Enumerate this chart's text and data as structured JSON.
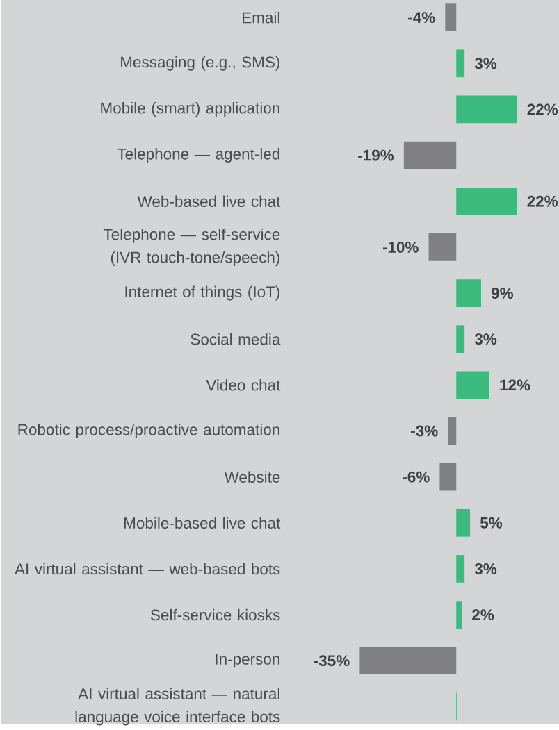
{
  "chart_data": {
    "type": "bar",
    "orientation": "horizontal",
    "tick_labels": "y",
    "categories": [
      "Email",
      "Messaging (e.g., SMS)",
      "Mobile (smart) application",
      "Telephone — agent-led",
      "Web-based live chat",
      "Telephone — self-service (IVR touch-tone/speech)",
      "Internet of things (IoT)",
      "Social media",
      "Video chat",
      "Robotic process/proactive automation",
      "Website",
      "Mobile-based live chat",
      "AI virtual assistant — web-based bots",
      "Self-service kiosks",
      "In-person",
      "AI virtual assistant — natural language voice interface bots"
    ],
    "values": [
      -4,
      3,
      22,
      -19,
      22,
      -10,
      9,
      3,
      12,
      -3,
      -6,
      5,
      3,
      2,
      -35,
      0.3
    ],
    "value_labels": [
      "-4%",
      "3%",
      "22%",
      "-19%",
      "22%",
      "-10%",
      "9%",
      "3%",
      "12%",
      "-3%",
      "-6%",
      "5%",
      "3%",
      "2%",
      "-35%",
      null
    ],
    "colors": [
      "#808084",
      "#3dba7e",
      "#3dba7e",
      "#808084",
      "#3dba7e",
      "#808084",
      "#3dba7e",
      "#3dba7e",
      "#3dba7e",
      "#808084",
      "#808084",
      "#3dba7e",
      "#3dba7e",
      "#3dba7e",
      "#808084",
      "#3dba7e"
    ]
  }
}
